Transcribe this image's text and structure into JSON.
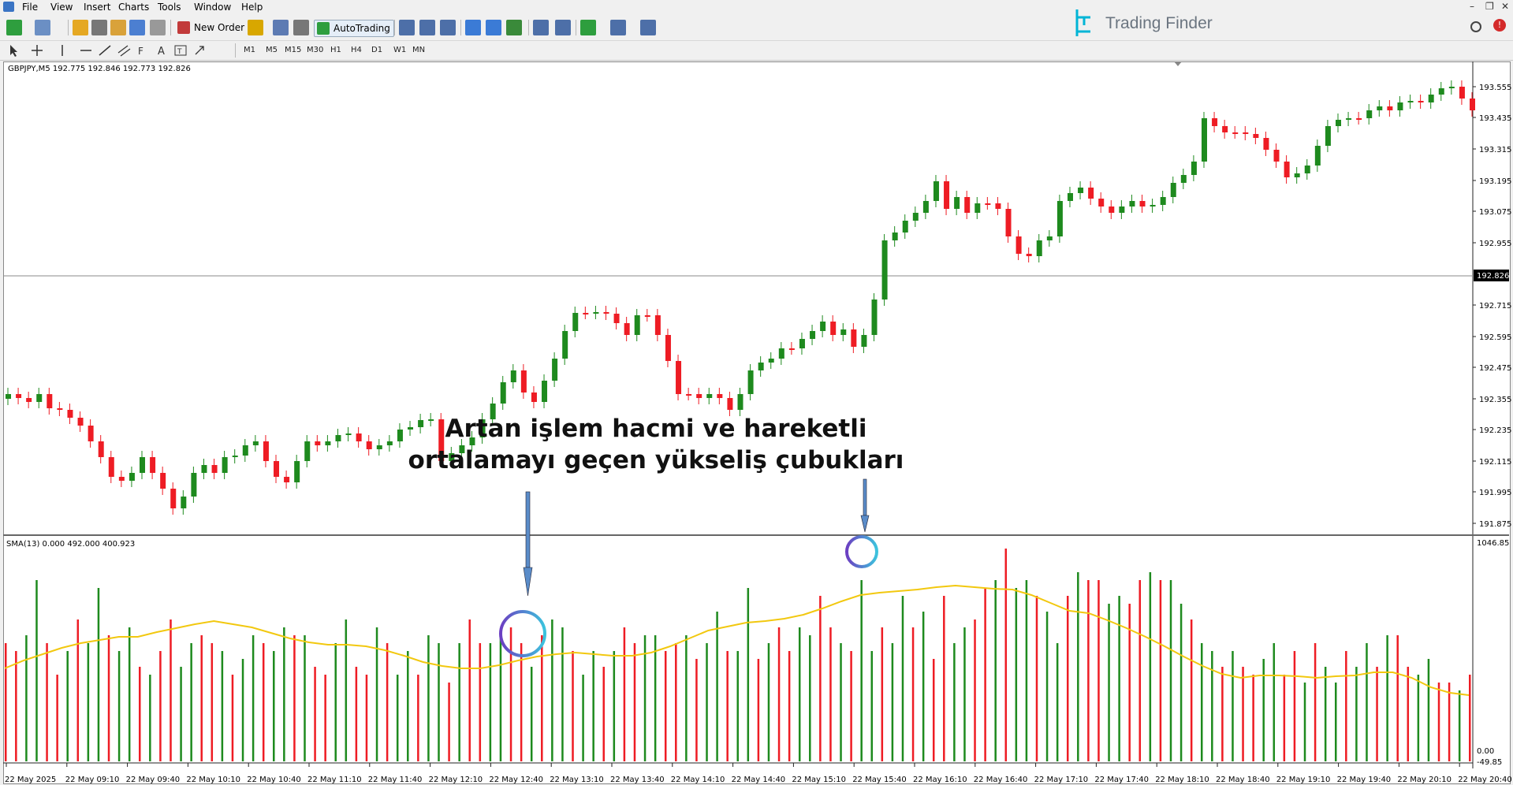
{
  "menu": {
    "items": [
      "File",
      "View",
      "Insert",
      "Charts",
      "Tools",
      "Window",
      "Help"
    ]
  },
  "window": {
    "minimize": "–",
    "restore": "❐",
    "close": "✕"
  },
  "toolbar": {
    "new_order": "New Order",
    "auto_trading": "AutoTrading"
  },
  "timeframes": [
    "M1",
    "M5",
    "M15",
    "M30",
    "H1",
    "H4",
    "D1",
    "W1",
    "MN"
  ],
  "brand": {
    "name": "Trading Finder"
  },
  "colors": {
    "bull": "#1e8a1e",
    "bear": "#ee1c24",
    "sma": "#f2c80f",
    "accent": "#00a6c9"
  },
  "chart": {
    "symbol_label": "GBPJPY,M5  192.775 192.846 192.773 192.826",
    "current_price": "192.826",
    "price_axis": [
      "193.555",
      "193.435",
      "193.315",
      "193.195",
      "193.075",
      "192.955",
      "192.715",
      "192.595",
      "192.475",
      "192.355",
      "192.235",
      "192.115",
      "191.995",
      "191.875"
    ],
    "indicator_label": "SMA(13) 0.000 492.000 400.923",
    "indicator_axis": {
      "top": "1046.85",
      "bottom_a": "0.00",
      "bottom_b": "-49.85"
    },
    "time_axis": [
      "22 May 2025",
      "22 May 09:10",
      "22 May 09:40",
      "22 May 10:10",
      "22 May 10:40",
      "22 May 11:10",
      "22 May 11:40",
      "22 May 12:10",
      "22 May 12:40",
      "22 May 13:10",
      "22 May 13:40",
      "22 May 14:10",
      "22 May 14:40",
      "22 May 15:10",
      "22 May 15:40",
      "22 May 16:10",
      "22 May 16:40",
      "22 May 17:10",
      "22 May 17:40",
      "22 May 18:10",
      "22 May 18:40",
      "22 May 19:10",
      "22 May 19:40",
      "22 May 20:10",
      "22 May 20:40"
    ],
    "annotation": [
      "Artan işlem hacmi ve hareketli",
      "ortalamayı geçen yükseliş çubukları"
    ]
  }
}
